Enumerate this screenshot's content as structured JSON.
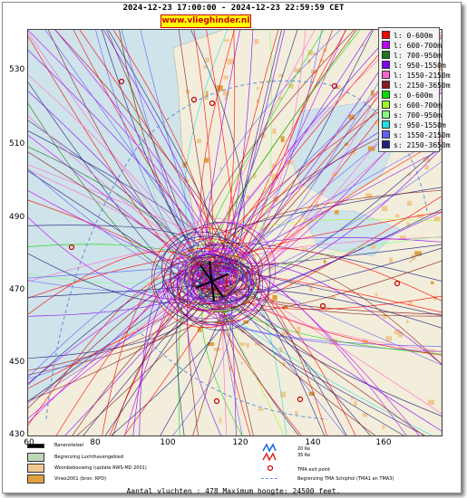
{
  "header": {
    "title": "2024-12-23 17:00:00 - 2024-12-23 22:59:59 CET",
    "brand": "www.vlieghinder.nl"
  },
  "axes": {
    "y_ticks": [
      "530",
      "510",
      "490",
      "470",
      "450",
      "430"
    ],
    "x_ticks": [
      "60",
      "80",
      "100",
      "120",
      "140",
      "160"
    ]
  },
  "legend": {
    "items": [
      {
        "label": "l: 0-600m",
        "color": "#ff0000"
      },
      {
        "label": "l: 600-700m",
        "color": "#c000ff"
      },
      {
        "label": "l: 700-950m",
        "color": "#1a7a1a"
      },
      {
        "label": "l: 950-1550m",
        "color": "#8000ff"
      },
      {
        "label": "l: 1550-2150m",
        "color": "#ff66cc"
      },
      {
        "label": "l: 2150-3650m",
        "color": "#8b1a1a"
      },
      {
        "label": "s: 0-600m",
        "color": "#00e000"
      },
      {
        "label": "s: 600-700m",
        "color": "#a0ff20"
      },
      {
        "label": "s: 700-950m",
        "color": "#80ff80"
      },
      {
        "label": "s: 950-1550m",
        "color": "#20e0e0"
      },
      {
        "label": "s: 1550-2150m",
        "color": "#6060ff"
      },
      {
        "label": "s: 2150-3650m",
        "color": "#202080"
      }
    ]
  },
  "map_legend": {
    "runway": "Banenstelsel",
    "airspace_boundary": "Begrenzing Luchthavengebied",
    "housing": "Woonbebouwing (update RWS-MD 2001)",
    "vinex": "Vinex2001 (bron: RPD)",
    "km20": "20 Ke",
    "km35": "35 Ke",
    "tma_exit": "TMA exit point",
    "tma_boundary": "Begrenzing TMA Schiphol  (TMA1 en TMA3)"
  },
  "footer": {
    "text": "Aantal vluchten : 478 Maximum hoogte: 24500 feet."
  }
}
